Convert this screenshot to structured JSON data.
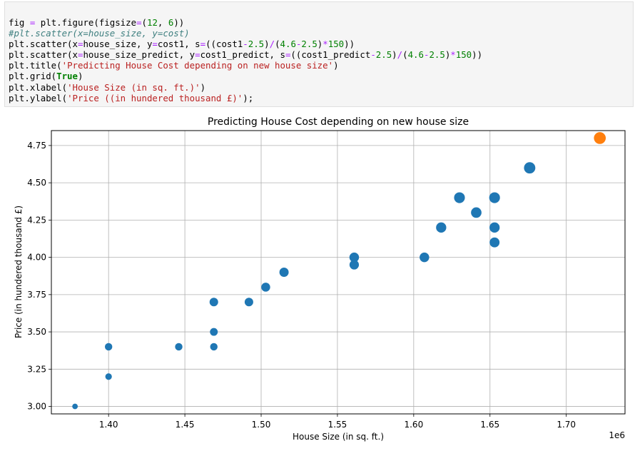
{
  "code_cell": {
    "lines": [
      [
        {
          "t": "fig "
        },
        {
          "t": "=",
          "k": "op"
        },
        {
          "t": " plt.figure(figsize"
        },
        {
          "t": "=",
          "k": "op"
        },
        {
          "t": "("
        },
        {
          "t": "12",
          "k": "num"
        },
        {
          "t": ", "
        },
        {
          "t": "6",
          "k": "num"
        },
        {
          "t": "))"
        }
      ],
      [
        {
          "t": "#plt.scatter(x=house_size, y=cost)",
          "k": "com"
        }
      ],
      [
        {
          "t": "plt.scatter(x"
        },
        {
          "t": "=",
          "k": "op"
        },
        {
          "t": "house_size, y"
        },
        {
          "t": "=",
          "k": "op"
        },
        {
          "t": "cost1, s"
        },
        {
          "t": "=",
          "k": "op"
        },
        {
          "t": "((cost1"
        },
        {
          "t": "-",
          "k": "op"
        },
        {
          "t": "2.5",
          "k": "num"
        },
        {
          "t": ")"
        },
        {
          "t": "/",
          "k": "op"
        },
        {
          "t": "("
        },
        {
          "t": "4.6",
          "k": "num"
        },
        {
          "t": "-",
          "k": "op"
        },
        {
          "t": "2.5",
          "k": "num"
        },
        {
          "t": ")"
        },
        {
          "t": "*",
          "k": "op"
        },
        {
          "t": "150",
          "k": "num"
        },
        {
          "t": "))"
        }
      ],
      [
        {
          "t": "plt.scatter(x"
        },
        {
          "t": "=",
          "k": "op"
        },
        {
          "t": "house_size_predict, y"
        },
        {
          "t": "=",
          "k": "op"
        },
        {
          "t": "cost1_predict, s"
        },
        {
          "t": "=",
          "k": "op"
        },
        {
          "t": "((cost1_predict"
        },
        {
          "t": "-",
          "k": "op"
        },
        {
          "t": "2.5",
          "k": "num"
        },
        {
          "t": ")"
        },
        {
          "t": "/",
          "k": "op"
        },
        {
          "t": "("
        },
        {
          "t": "4.6",
          "k": "num"
        },
        {
          "t": "-",
          "k": "op"
        },
        {
          "t": "2.5",
          "k": "num"
        },
        {
          "t": ")"
        },
        {
          "t": "*",
          "k": "op"
        },
        {
          "t": "150",
          "k": "num"
        },
        {
          "t": "))"
        }
      ],
      [
        {
          "t": "plt.title("
        },
        {
          "t": "'Predicting House Cost depending on new house size'",
          "k": "str"
        },
        {
          "t": ")"
        }
      ],
      [
        {
          "t": "plt.grid("
        },
        {
          "t": "True",
          "k": "kw"
        },
        {
          "t": ")"
        }
      ],
      [
        {
          "t": "plt.xlabel("
        },
        {
          "t": "'House Size (in sq. ft.)'",
          "k": "str"
        },
        {
          "t": ")"
        }
      ],
      [
        {
          "t": "plt.ylabel("
        },
        {
          "t": "'Price ((in hundered thousand £)'",
          "k": "str"
        },
        {
          "t": ");"
        }
      ]
    ],
    "colors": {
      "str": "#ba2121",
      "num": "#008000",
      "op": "#aa22ff",
      "kw": "#008000",
      "com": "#408080"
    }
  },
  "chart_data": {
    "type": "scatter",
    "title": "Predicting House Cost depending on new house size",
    "xlabel": "House Size (in sq. ft.)",
    "ylabel": "Price (in hundered thousand £)",
    "x_offset_label": "1e6",
    "xlim": [
      1.3625,
      1.7385
    ],
    "ylim": [
      2.95,
      4.85
    ],
    "x_ticks": [
      1.4,
      1.45,
      1.5,
      1.55,
      1.6,
      1.65,
      1.7
    ],
    "x_tick_labels": [
      "1.40",
      "1.45",
      "1.50",
      "1.55",
      "1.60",
      "1.65",
      "1.70"
    ],
    "y_ticks": [
      3.0,
      3.25,
      3.5,
      3.75,
      4.0,
      4.25,
      4.5,
      4.75
    ],
    "y_tick_labels": [
      "3.00",
      "3.25",
      "3.50",
      "3.75",
      "4.00",
      "4.25",
      "4.50",
      "4.75"
    ],
    "grid": true,
    "series": [
      {
        "color": "#1f77b4",
        "x": [
          1.378,
          1.4,
          1.4,
          1.446,
          1.469,
          1.469,
          1.469,
          1.492,
          1.503,
          1.515,
          1.561,
          1.561,
          1.607,
          1.618,
          1.63,
          1.641,
          1.653,
          1.653,
          1.653,
          1.676
        ],
        "y": [
          3.0,
          3.4,
          3.2,
          3.4,
          3.4,
          3.5,
          3.7,
          3.7,
          3.8,
          3.9,
          4.0,
          3.95,
          4.0,
          4.2,
          4.4,
          4.3,
          4.4,
          4.2,
          4.1,
          4.6
        ]
      },
      {
        "color": "#ff7f0e",
        "x": [
          1.722
        ],
        "y": [
          4.8
        ]
      }
    ]
  }
}
